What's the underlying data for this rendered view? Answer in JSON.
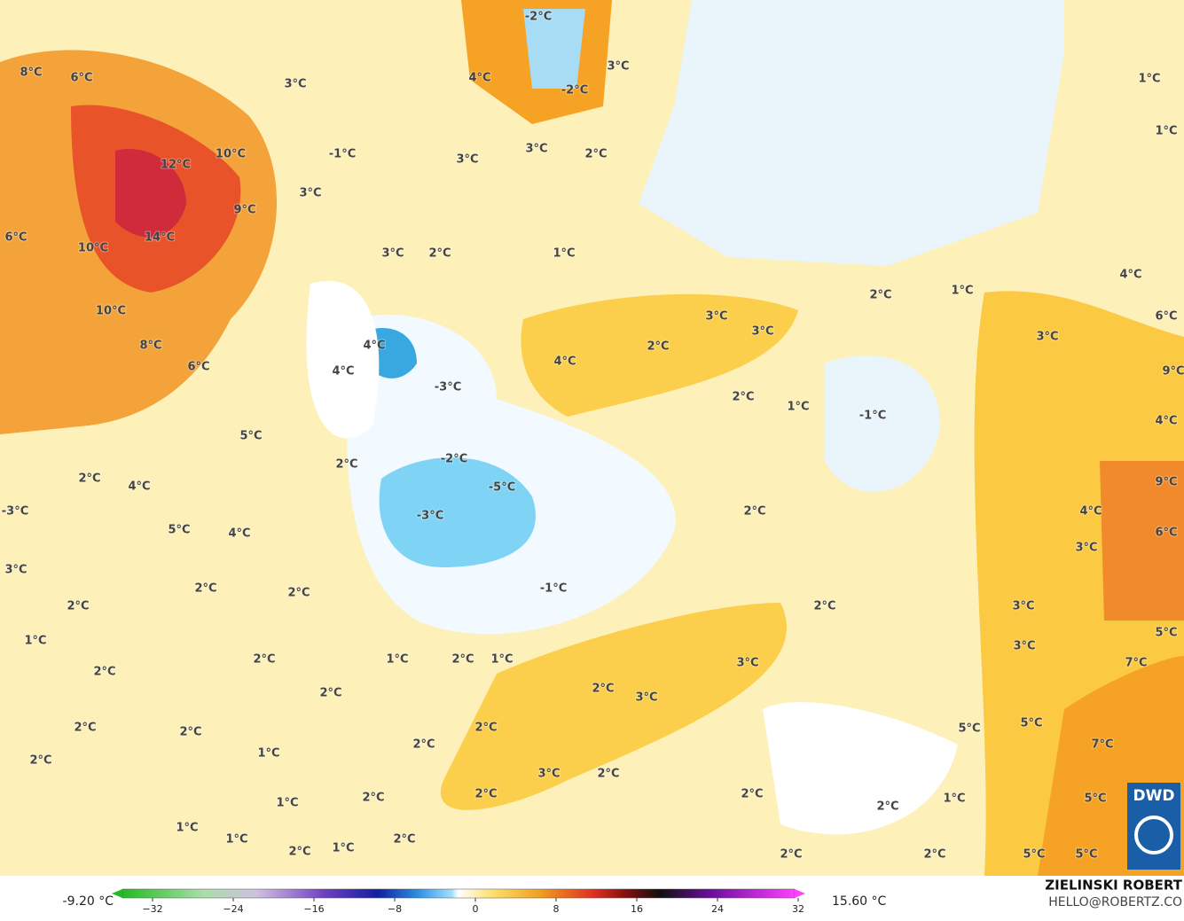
{
  "map": {
    "labels": [
      "8°C",
      "6°C",
      "3°C",
      "4°C",
      "-2°C",
      "3°C",
      "-2°C",
      "1°C",
      "1°C",
      "12°C",
      "10°C",
      "-1°C",
      "3°C",
      "3°C",
      "2°C",
      "3°C",
      "9°C",
      "6°C",
      "10°C",
      "14°C",
      "3°C",
      "2°C",
      "1°C",
      "2°C",
      "1°C",
      "4°C",
      "10°C",
      "3°C",
      "3°C",
      "6°C",
      "8°C",
      "4°C",
      "2°C",
      "3°C",
      "4°C",
      "6°C",
      "4°C",
      "-3°C",
      "9°C",
      "2°C",
      "1°C",
      "-1°C",
      "4°C",
      "5°C",
      "2°C",
      "-2°C",
      "2°C",
      "4°C",
      "-5°C",
      "9°C",
      "-3°C",
      "-3°C",
      "2°C",
      "4°C",
      "5°C",
      "4°C",
      "6°C",
      "3°C",
      "3°C",
      "2°C",
      "2°C",
      "-1°C",
      "2°C",
      "2°C",
      "3°C",
      "5°C",
      "1°C",
      "3°C",
      "2°C",
      "1°C",
      "2°C",
      "1°C",
      "3°C",
      "7°C",
      "2°C",
      "2°C",
      "2°C",
      "3°C",
      "2°C",
      "2°C",
      "2°C",
      "5°C",
      "5°C",
      "1°C",
      "2°C",
      "7°C",
      "2°C",
      "3°C",
      "2°C",
      "2°C",
      "2°C",
      "2°C",
      "1°C",
      "2°C",
      "1°C",
      "5°C",
      "1°C",
      "1°C",
      "2°C",
      "2°C",
      "1°C",
      "2°C",
      "2°C",
      "5°C",
      "5°C"
    ],
    "colorbar": {
      "min_label": "-9.20 °C",
      "max_label": "15.60 °C",
      "ticks": [
        "−32",
        "−24",
        "−16",
        "−8",
        "0",
        "8",
        "16",
        "24",
        "32"
      ]
    },
    "logo": "DWD",
    "author": "ZIELINSKI ROBERT",
    "contact": "HELLO@ROBERTZ.CO"
  }
}
